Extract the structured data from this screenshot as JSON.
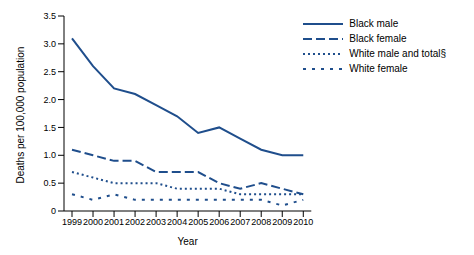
{
  "chart_data": {
    "type": "line",
    "x_label": "Year",
    "y_label": "Deaths per 100,000 population",
    "categories": [
      "1999",
      "2000",
      "2001",
      "2002",
      "2003",
      "2004",
      "2005",
      "2006",
      "2007",
      "2008",
      "2009",
      "2010"
    ],
    "ylim": [
      0,
      3.5
    ],
    "yticks": [
      0,
      0.5,
      {
        "value": 1,
        "label": "1.0"
      },
      1.5,
      {
        "value": 2,
        "label": "2.0"
      },
      2.5,
      {
        "value": 3,
        "label": "3.0"
      },
      3.5
    ],
    "grid": false,
    "legend": "top right",
    "series": [
      {
        "name": "Black male",
        "color": "#1f4e8c",
        "line_style": "solid",
        "values": [
          3.1,
          2.6,
          2.2,
          2.1,
          1.9,
          1.7,
          1.4,
          1.5,
          1.3,
          1.1,
          1.0,
          1.0
        ]
      },
      {
        "name": "Black female",
        "color": "#1f4e8c",
        "line_style": "dashed",
        "values": [
          1.1,
          1.0,
          0.9,
          0.9,
          0.7,
          0.7,
          0.7,
          0.5,
          0.4,
          0.5,
          0.4,
          0.3
        ]
      },
      {
        "name": "White male and total§",
        "color": "#1f4e8c",
        "line_style": "dotted",
        "values": [
          0.7,
          0.6,
          0.5,
          0.5,
          0.5,
          0.4,
          0.4,
          0.4,
          0.3,
          0.3,
          0.3,
          0.3
        ]
      },
      {
        "name": "White female",
        "color": "#1f4e8c",
        "line_style": "loose_dotted",
        "values": [
          0.3,
          0.2,
          0.3,
          0.2,
          0.2,
          0.2,
          0.2,
          0.2,
          0.2,
          0.2,
          0.1,
          0.2
        ]
      }
    ]
  }
}
